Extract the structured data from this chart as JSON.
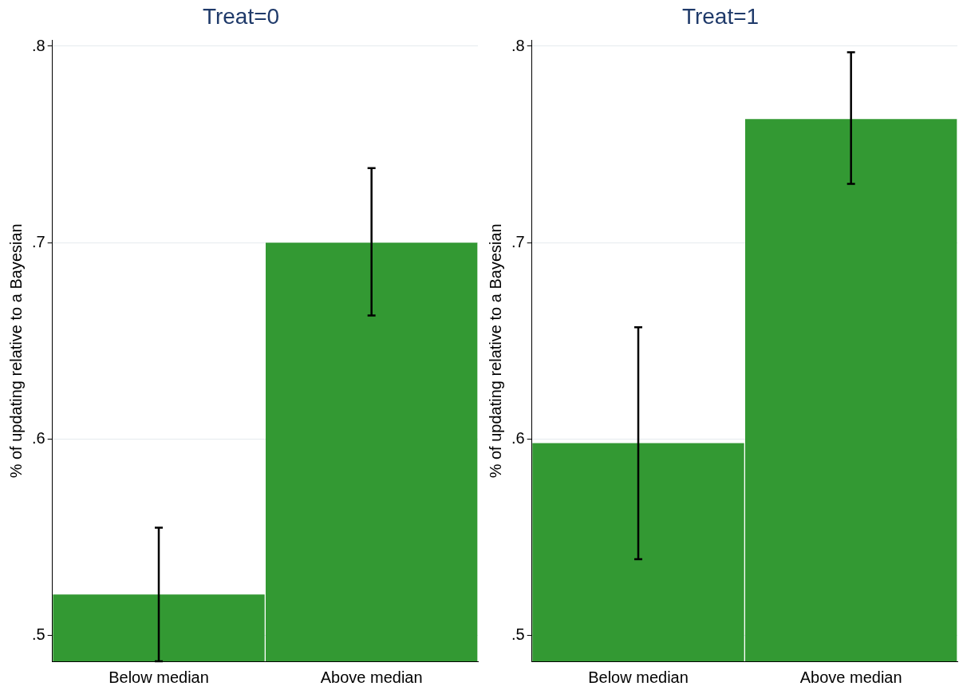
{
  "chart_data": [
    {
      "type": "bar",
      "title": "Treat=0",
      "ylabel": "% of updating relative to a Bayesian",
      "categories": [
        "Below median",
        "Above median"
      ],
      "series": [
        {
          "color": "#339933",
          "values": [
            0.521,
            0.7
          ],
          "errors": [
            [
              0.487,
              0.555
            ],
            [
              0.663,
              0.738
            ]
          ]
        }
      ],
      "ylim": [
        0.487,
        0.803
      ],
      "yticks": [
        {
          "value": 0.5,
          "label": ".5"
        },
        {
          "value": 0.6,
          "label": ".6"
        },
        {
          "value": 0.7,
          "label": ".7"
        },
        {
          "value": 0.8,
          "label": ".8"
        }
      ],
      "grid": "y",
      "legend": false
    },
    {
      "type": "bar",
      "title": "Treat=1",
      "ylabel": "% of updating relative to a Bayesian",
      "categories": [
        "Below median",
        "Above median"
      ],
      "series": [
        {
          "color": "#339933",
          "values": [
            0.598,
            0.763
          ],
          "errors": [
            [
              0.539,
              0.657
            ],
            [
              0.73,
              0.797
            ]
          ]
        }
      ],
      "ylim": [
        0.487,
        0.803
      ],
      "yticks": [
        {
          "value": 0.5,
          "label": ".5"
        },
        {
          "value": 0.6,
          "label": ".6"
        },
        {
          "value": 0.7,
          "label": ".7"
        },
        {
          "value": 0.8,
          "label": ".8"
        }
      ],
      "grid": "y",
      "legend": false
    }
  ]
}
